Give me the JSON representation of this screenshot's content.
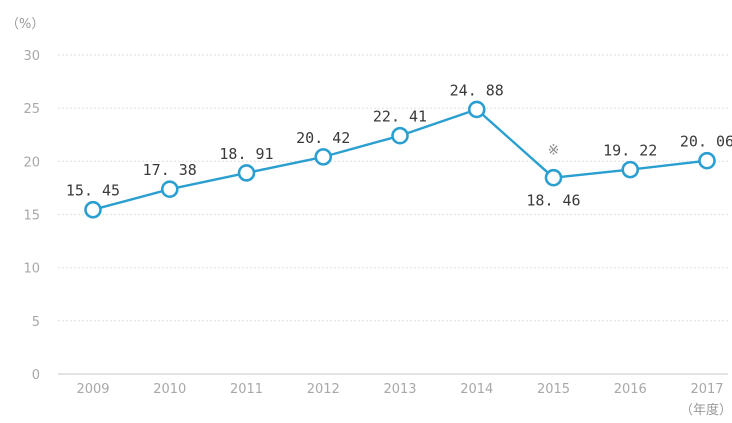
{
  "chart_data": {
    "type": "line",
    "title": "",
    "xlabel": "（年度）",
    "ylabel": "（%）",
    "categories": [
      "2009",
      "2010",
      "2011",
      "2012",
      "2013",
      "2014",
      "2015",
      "2016",
      "2017"
    ],
    "series": [
      {
        "values": [
          15.45,
          17.38,
          18.91,
          20.42,
          22.41,
          24.88,
          18.46,
          19.22,
          20.06
        ],
        "value_labels": [
          "15. 45",
          "17. 38",
          "18. 91",
          "20. 42",
          "22. 41",
          "24. 88",
          "18. 46",
          "19. 22",
          "20. 06"
        ],
        "color": "#2a9fd0"
      }
    ],
    "ylim": [
      0,
      30
    ],
    "yticks": [
      "0",
      "5",
      "10",
      "15",
      "20",
      "25",
      "30"
    ],
    "grid": true,
    "annotations": [
      {
        "category": "2015",
        "text": "※"
      }
    ]
  }
}
